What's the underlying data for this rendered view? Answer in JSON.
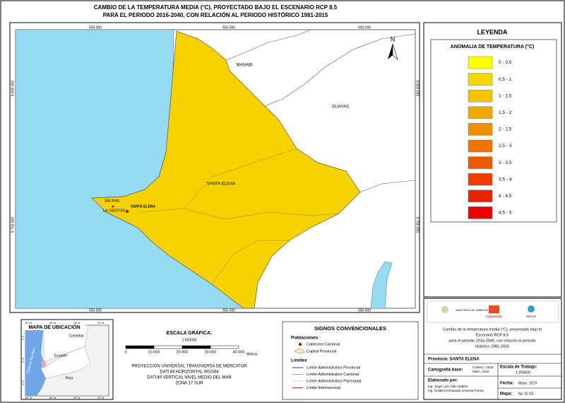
{
  "title": [
    "CAMBIO DE LA TEMPERATURA MEDIA (°C),  PROYECTADO BAJO EL ESCENARIO RCP 8.5",
    "PARA EL PERIODO 2016-2040, CON RELACIÓN AL PERIODO HISTÓRICO 1981-2015"
  ],
  "map": {
    "north": "N",
    "x_labels": [
      "500.000",
      "550.000",
      "600.000"
    ],
    "y_labels": [
      "9.800.000",
      "9.750.000"
    ],
    "places": {
      "manabi": "MANABI",
      "guayas": "GUAYAS",
      "province": "SANTA ELENA",
      "salinas": "SALINAS",
      "la_libertad": "LA LIBERTAD",
      "santa_elena": "SANTA ELENA"
    }
  },
  "legend": {
    "title": "LEYENDA",
    "subtitle": "ANOMALIA DE TEMPERATURA (°C)",
    "classes": [
      {
        "label": "0 - 0,5",
        "color": "#ffff00"
      },
      {
        "label": "0,5 - 1",
        "color": "#f5d700"
      },
      {
        "label": "1 - 1,5",
        "color": "#f3c300"
      },
      {
        "label": "1,5 - 2",
        "color": "#f1a900"
      },
      {
        "label": "2 - 2,5",
        "color": "#ef8f00"
      },
      {
        "label": "2,5 - 3",
        "color": "#ee7400"
      },
      {
        "label": "3 - 3,5",
        "color": "#ec5900"
      },
      {
        "label": "3,5 - 4",
        "color": "#ea3f00"
      },
      {
        "label": "4 - 4,5",
        "color": "#e82400"
      },
      {
        "label": "4,5 - 5",
        "color": "#e60000"
      }
    ]
  },
  "location_map": {
    "title": "MAPA DE UBICACIÓN",
    "colombia": "Colombia",
    "ecuador": "Ecuador",
    "peru": "Perú",
    "ocean": "Océano Pacífico",
    "lon_labels": [
      "-82° W",
      "-80° W",
      "-78° W",
      "-76° W"
    ],
    "lat_labels": [
      "0° S",
      "-2° S",
      "-4° S"
    ]
  },
  "scale": {
    "title": "ESCALA GRÁFICA:",
    "ratio": "1:500000",
    "ticks": [
      "0",
      "10.000",
      "20.000",
      "30.000",
      "40.000"
    ],
    "unit": "Metros",
    "projection": [
      "PROYECCIÓN UNIVERSAL TRANSVERSA DE MERCATOR",
      "DATUM HORIZONTAL WGS84",
      "DATUM VERTICAL NIVEL MEDIO DEL MAR",
      "ZONA 17 SUR"
    ]
  },
  "signs": {
    "title": "SIGNOS CONVENCIONALES",
    "populations": "Poblaciones",
    "cantonal": "Cabecera Cantonal",
    "provincial_capital": "Capital Provincial",
    "limits": "Límites",
    "limit_items": [
      "Límite Administrativo Provincial",
      "Límite Administrativo Cantonal",
      "Límite Administrativo Parroquial",
      "Límite Internacional"
    ]
  },
  "info": {
    "logos": [
      "MINISTERIO DEL AMBIENTE",
      "CONDESAN",
      "AICCA"
    ],
    "description": [
      "Cambio de la temperatura media (°C),  proyectado bajo el",
      "Escenario RCP 8.5",
      "para el periodo 2016-2040, con relación al periodo",
      "histórico 1981-2015"
    ],
    "province": "Provincia:  SANTA ELENA",
    "base_label": "Cartografía base:",
    "base_value": [
      "CONALI, 2018",
      "INEC, 2016"
    ],
    "scale_label": "Escala de Trabajo:",
    "scale_value": "1:250000",
    "author_label": "Elaborado por:",
    "authors": [
      "Ing. Jorge Luis Villa Cedeño",
      "Ing. Guillermo Eduardo Armenta Porras"
    ],
    "date_label": "Fecha:",
    "date_value": "Mayo, 2019",
    "map_label": "Mapa:",
    "map_value": "No 15 /15"
  }
}
